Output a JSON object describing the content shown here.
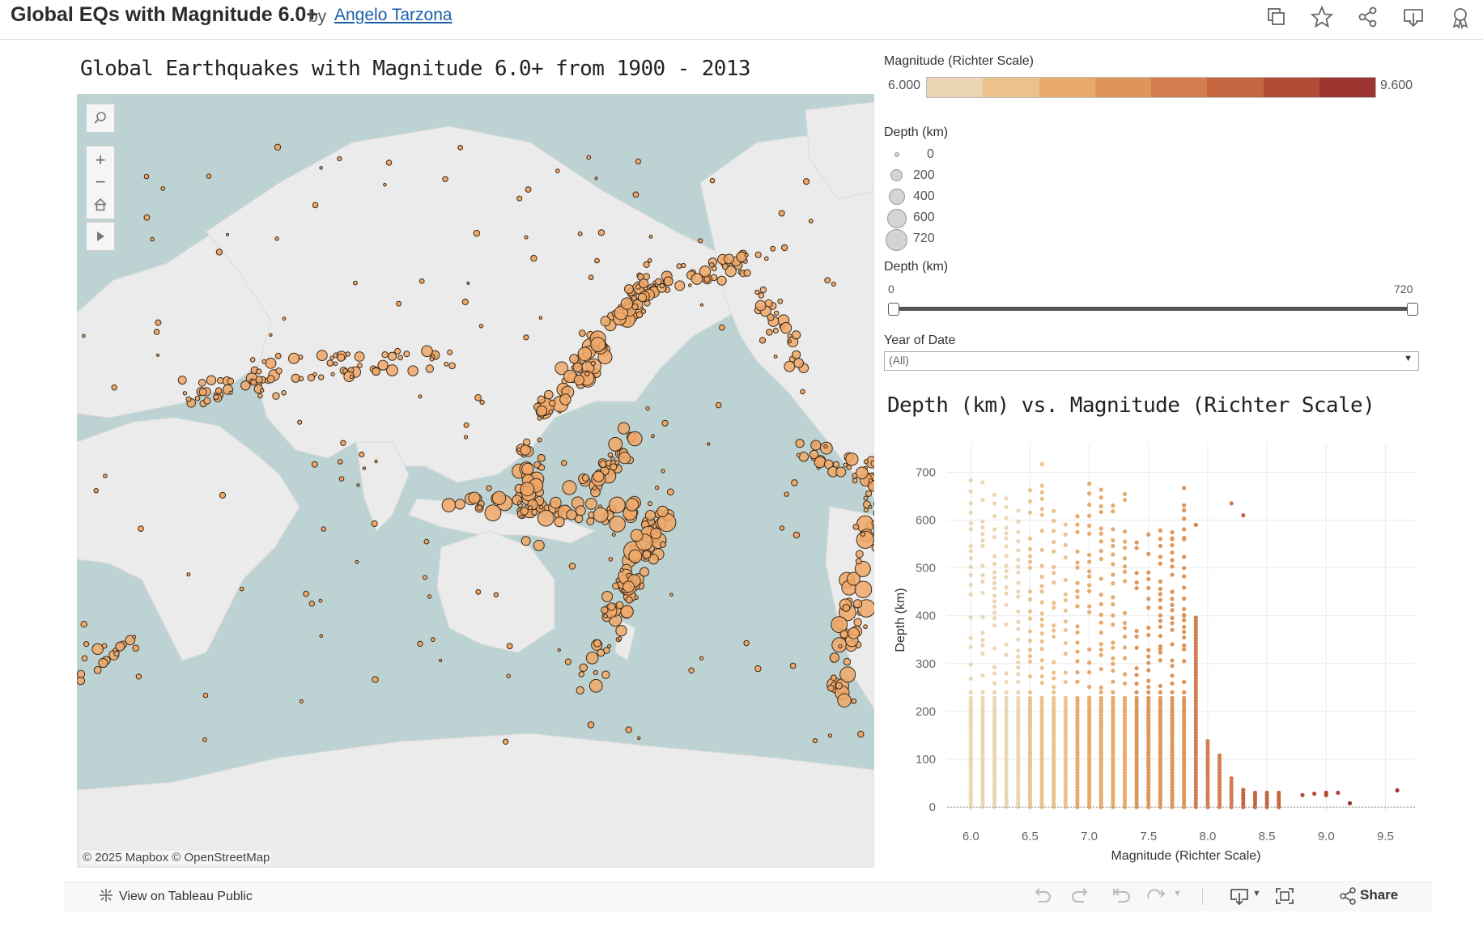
{
  "header": {
    "title": "Global EQs with Magnitude 6.0+",
    "by": "by",
    "author": "Angelo Tarzona",
    "icons": [
      "copy-icon",
      "star-icon",
      "share-icon",
      "download-icon",
      "badge-icon"
    ]
  },
  "map": {
    "title": "Global Earthquakes with Magnitude 6.0+ from 1900 - 2013",
    "attribution": "© 2025 Mapbox © OpenStreetMap",
    "controls": [
      "search-icon",
      "zoom-in-icon",
      "zoom-out-icon",
      "home-icon",
      "play-icon"
    ],
    "colors": {
      "water": "#bdd3d3",
      "land": "#ebebeb",
      "marker": "#f0a868",
      "marker_stroke": "#3a2a1a"
    }
  },
  "legend": {
    "magnitude": {
      "title": "Magnitude (Richter Scale)",
      "min_label": "6.000",
      "max_label": "9.600",
      "colors": [
        "#ecd5b4",
        "#ecc28c",
        "#e7aa6a",
        "#de955a",
        "#d27e4f",
        "#c56641",
        "#b14c36",
        "#9c3430"
      ]
    },
    "depth_size": {
      "title": "Depth (km)",
      "values": [
        "0",
        "200",
        "400",
        "600",
        "720"
      ]
    }
  },
  "filters": {
    "depth_slider": {
      "title": "Depth (km)",
      "min_label": "0",
      "max_label": "720"
    },
    "year": {
      "title": "Year of Date",
      "value": "(All)"
    }
  },
  "scatter": {
    "title": "Depth (km) vs. Magnitude (Richter Scale)",
    "xlabel": "Magnitude (Richter Scale)",
    "ylabel": "Depth (km)"
  },
  "chart_data": {
    "type": "scatter",
    "title": "Depth (km) vs. Magnitude (Richter Scale)",
    "xlabel": "Magnitude (Richter Scale)",
    "ylabel": "Depth (km)",
    "xlim": [
      5.8,
      9.75
    ],
    "ylim": [
      -10,
      760
    ],
    "x_ticks": [
      "6.0",
      "6.5",
      "7.0",
      "7.5",
      "8.0",
      "8.5",
      "9.0",
      "9.5"
    ],
    "y_ticks": [
      "0",
      "100",
      "200",
      "300",
      "400",
      "500",
      "600",
      "700"
    ],
    "grid": true,
    "color_encoding": "magnitude",
    "columns": [
      {
        "x": 6.0,
        "ymax": 690
      },
      {
        "x": 6.1,
        "ymax": 680
      },
      {
        "x": 6.2,
        "ymax": 660
      },
      {
        "x": 6.3,
        "ymax": 650
      },
      {
        "x": 6.4,
        "ymax": 630
      },
      {
        "x": 6.5,
        "ymax": 670
      },
      {
        "x": 6.6,
        "ymax": 720
      },
      {
        "x": 6.7,
        "ymax": 640
      },
      {
        "x": 6.8,
        "ymax": 650
      },
      {
        "x": 6.9,
        "ymax": 640
      },
      {
        "x": 7.0,
        "ymax": 680
      },
      {
        "x": 7.1,
        "ymax": 670
      },
      {
        "x": 7.2,
        "ymax": 640
      },
      {
        "x": 7.3,
        "ymax": 660
      },
      {
        "x": 7.4,
        "ymax": 610
      },
      {
        "x": 7.5,
        "ymax": 640
      },
      {
        "x": 7.6,
        "ymax": 580
      },
      {
        "x": 7.7,
        "ymax": 580
      },
      {
        "x": 7.8,
        "ymax": 670
      },
      {
        "x": 7.9,
        "ymax": 400
      },
      {
        "x": 8.0,
        "ymax": 140
      },
      {
        "x": 8.1,
        "ymax": 110
      },
      {
        "x": 8.2,
        "ymax": 60
      },
      {
        "x": 8.3,
        "ymax": 40
      },
      {
        "x": 8.4,
        "ymax": 30
      },
      {
        "x": 8.5,
        "ymax": 30
      },
      {
        "x": 8.6,
        "ymax": 30
      }
    ],
    "outliers": [
      {
        "x": 7.7,
        "y": 450
      },
      {
        "x": 7.8,
        "y": 400
      },
      {
        "x": 7.8,
        "y": 330
      },
      {
        "x": 7.6,
        "y": 330
      },
      {
        "x": 7.9,
        "y": 590
      },
      {
        "x": 7.8,
        "y": 560
      },
      {
        "x": 7.7,
        "y": 560
      },
      {
        "x": 8.2,
        "y": 635
      },
      {
        "x": 8.3,
        "y": 610
      },
      {
        "x": 8.8,
        "y": 25
      },
      {
        "x": 8.9,
        "y": 28
      },
      {
        "x": 9.0,
        "y": 30
      },
      {
        "x": 9.0,
        "y": 25
      },
      {
        "x": 9.1,
        "y": 30
      },
      {
        "x": 9.2,
        "y": 8
      },
      {
        "x": 9.6,
        "y": 35
      }
    ]
  }
}
